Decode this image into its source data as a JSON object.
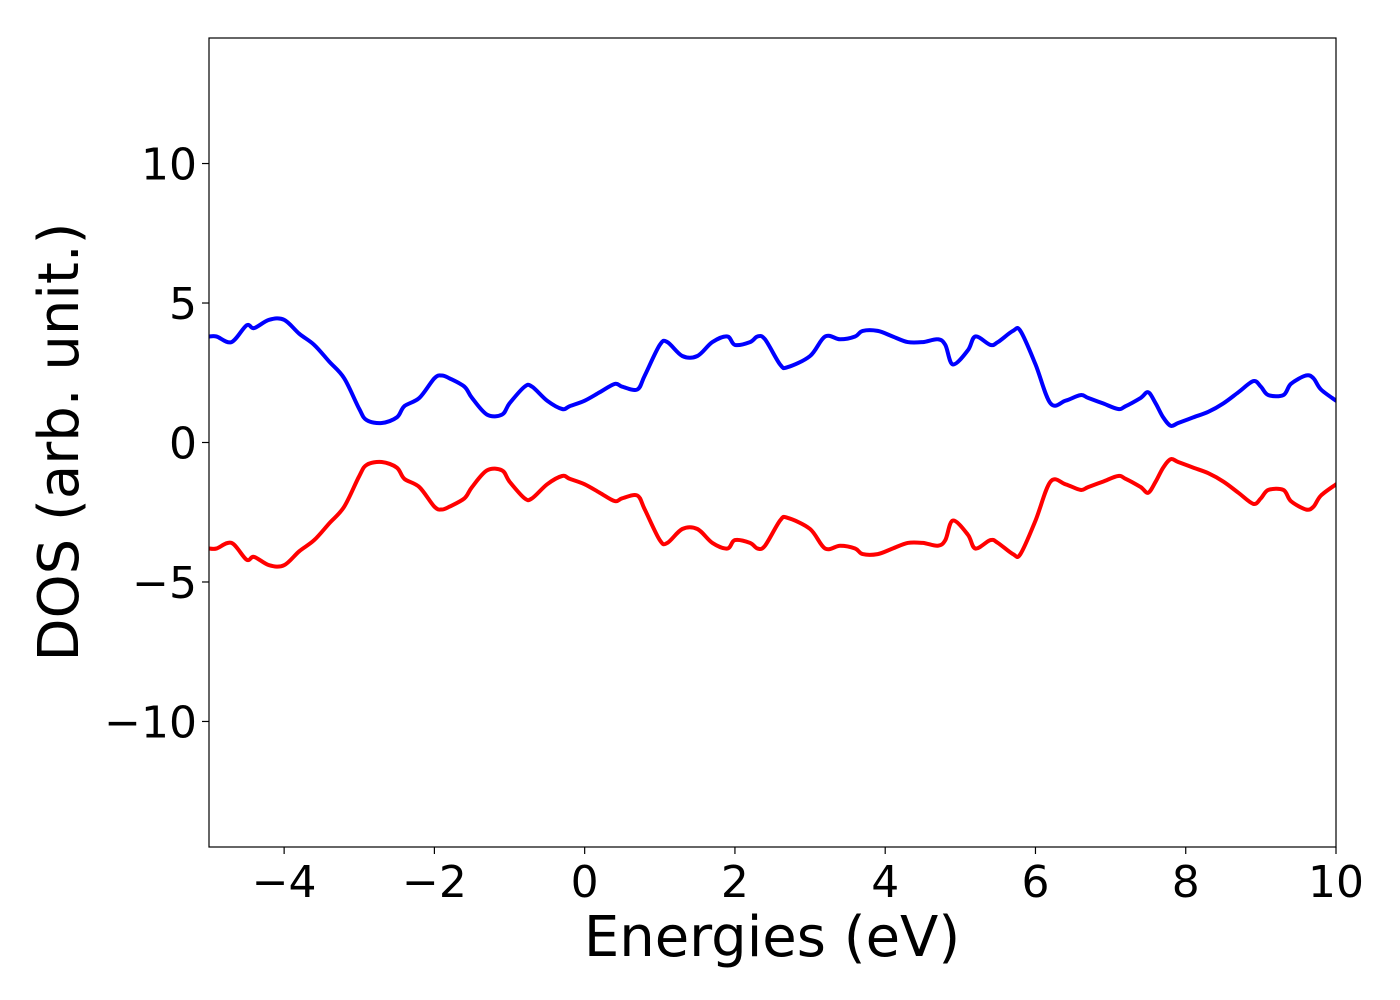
{
  "chart_data": {
    "type": "line",
    "title": "",
    "xlabel": "Energies (eV)",
    "ylabel": "DOS (arb. unit.)",
    "xlim": [
      -5,
      10
    ],
    "ylim": [
      -14.5,
      14.5
    ],
    "xticks": [
      -4,
      -2,
      0,
      2,
      4,
      6,
      8,
      10
    ],
    "xtick_labels": [
      "−4",
      "−2",
      "0",
      "2",
      "4",
      "6",
      "8",
      "10"
    ],
    "yticks": [
      -10,
      -5,
      0,
      5,
      10
    ],
    "ytick_labels": [
      "−10",
      "−5",
      "0",
      "5",
      "10"
    ],
    "grid": false,
    "legend": "none",
    "series": [
      {
        "color": "#0000ff",
        "x": [
          -5.0,
          -4.9,
          -4.7,
          -4.5,
          -4.4,
          -4.2,
          -4.0,
          -3.8,
          -3.6,
          -3.4,
          -3.2,
          -3.0,
          -2.9,
          -2.7,
          -2.5,
          -2.4,
          -2.2,
          -2.0,
          -1.9,
          -1.8,
          -1.6,
          -1.5,
          -1.3,
          -1.1,
          -1.0,
          -0.8,
          -0.7,
          -0.5,
          -0.3,
          -0.2,
          0.0,
          0.2,
          0.4,
          0.5,
          0.7,
          0.8,
          1.0,
          1.1,
          1.3,
          1.5,
          1.7,
          1.9,
          2.0,
          2.2,
          2.3,
          2.4,
          2.6,
          2.7,
          3.0,
          3.2,
          3.4,
          3.6,
          3.7,
          3.9,
          4.1,
          4.3,
          4.5,
          4.7,
          4.8,
          4.9,
          5.1,
          5.2,
          5.4,
          5.5,
          5.7,
          5.8,
          6.0,
          6.2,
          6.4,
          6.6,
          6.7,
          6.9,
          7.1,
          7.2,
          7.4,
          7.5,
          7.6,
          7.7,
          7.8,
          7.9,
          8.1,
          8.3,
          8.5,
          8.7,
          8.9,
          9.0,
          9.1,
          9.3,
          9.4,
          9.6,
          9.7,
          9.8,
          10.0
        ],
        "y": [
          3.8,
          3.8,
          3.6,
          4.2,
          4.1,
          4.4,
          4.4,
          3.9,
          3.5,
          2.9,
          2.3,
          1.2,
          0.8,
          0.7,
          0.9,
          1.3,
          1.6,
          2.3,
          2.4,
          2.3,
          2.0,
          1.6,
          1.0,
          1.0,
          1.4,
          2.0,
          2.0,
          1.5,
          1.2,
          1.3,
          1.5,
          1.8,
          2.1,
          2.0,
          1.9,
          2.4,
          3.5,
          3.6,
          3.1,
          3.1,
          3.6,
          3.8,
          3.5,
          3.6,
          3.8,
          3.7,
          2.8,
          2.7,
          3.1,
          3.8,
          3.7,
          3.8,
          4.0,
          4.0,
          3.8,
          3.6,
          3.6,
          3.7,
          3.5,
          2.8,
          3.3,
          3.8,
          3.5,
          3.6,
          4.0,
          4.0,
          2.8,
          1.4,
          1.5,
          1.7,
          1.6,
          1.4,
          1.2,
          1.3,
          1.6,
          1.8,
          1.4,
          0.9,
          0.6,
          0.7,
          0.9,
          1.1,
          1.4,
          1.8,
          2.2,
          2.0,
          1.7,
          1.7,
          2.1,
          2.4,
          2.3,
          1.9,
          1.5
        ]
      },
      {
        "color": "#ff0000",
        "x": [
          -5.0,
          -4.9,
          -4.7,
          -4.5,
          -4.4,
          -4.2,
          -4.0,
          -3.8,
          -3.6,
          -3.4,
          -3.2,
          -3.0,
          -2.9,
          -2.7,
          -2.5,
          -2.4,
          -2.2,
          -2.0,
          -1.9,
          -1.8,
          -1.6,
          -1.5,
          -1.3,
          -1.1,
          -1.0,
          -0.8,
          -0.7,
          -0.5,
          -0.3,
          -0.2,
          0.0,
          0.2,
          0.4,
          0.5,
          0.7,
          0.8,
          1.0,
          1.1,
          1.3,
          1.5,
          1.7,
          1.9,
          2.0,
          2.2,
          2.3,
          2.4,
          2.6,
          2.7,
          3.0,
          3.2,
          3.4,
          3.6,
          3.7,
          3.9,
          4.1,
          4.3,
          4.5,
          4.7,
          4.8,
          4.9,
          5.1,
          5.2,
          5.4,
          5.5,
          5.7,
          5.8,
          6.0,
          6.2,
          6.4,
          6.6,
          6.7,
          6.9,
          7.1,
          7.2,
          7.4,
          7.5,
          7.6,
          7.7,
          7.8,
          7.9,
          8.1,
          8.3,
          8.5,
          8.7,
          8.9,
          9.0,
          9.1,
          9.3,
          9.4,
          9.6,
          9.7,
          9.8,
          10.0
        ],
        "y": [
          -3.8,
          -3.8,
          -3.6,
          -4.2,
          -4.1,
          -4.4,
          -4.4,
          -3.9,
          -3.5,
          -2.9,
          -2.3,
          -1.2,
          -0.8,
          -0.7,
          -0.9,
          -1.3,
          -1.6,
          -2.3,
          -2.4,
          -2.3,
          -2.0,
          -1.6,
          -1.0,
          -1.0,
          -1.4,
          -2.0,
          -2.0,
          -1.5,
          -1.2,
          -1.3,
          -1.5,
          -1.8,
          -2.1,
          -2.0,
          -1.9,
          -2.4,
          -3.5,
          -3.6,
          -3.1,
          -3.1,
          -3.6,
          -3.8,
          -3.5,
          -3.6,
          -3.8,
          -3.7,
          -2.8,
          -2.7,
          -3.1,
          -3.8,
          -3.7,
          -3.8,
          -4.0,
          -4.0,
          -3.8,
          -3.6,
          -3.6,
          -3.7,
          -3.5,
          -2.8,
          -3.3,
          -3.8,
          -3.5,
          -3.6,
          -4.0,
          -4.0,
          -2.8,
          -1.4,
          -1.5,
          -1.7,
          -1.6,
          -1.4,
          -1.2,
          -1.3,
          -1.6,
          -1.8,
          -1.4,
          -0.9,
          -0.6,
          -0.7,
          -0.9,
          -1.1,
          -1.4,
          -1.8,
          -2.2,
          -2.0,
          -1.7,
          -1.7,
          -2.1,
          -2.4,
          -2.3,
          -1.9,
          -1.5
        ]
      }
    ]
  }
}
